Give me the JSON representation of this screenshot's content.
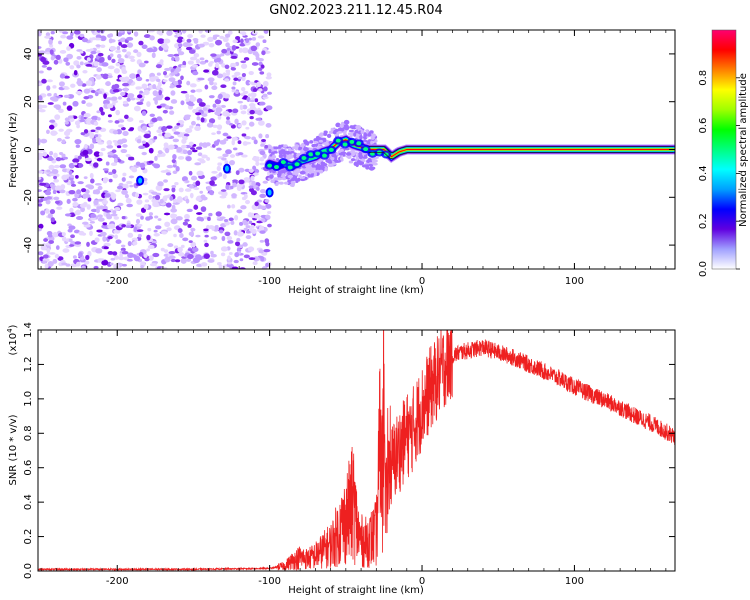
{
  "title": "GN02.2023.211.12.45.R04",
  "chart_data": [
    {
      "type": "heatmap",
      "xlabel": "Height of straight line (km)",
      "ylabel": "Frequency (Hz)",
      "xlim": [
        -252,
        166
      ],
      "ylim": [
        -50,
        50
      ],
      "xticks": [
        -200,
        -100,
        0,
        100
      ],
      "yticks": [
        -40,
        -20,
        0,
        20,
        40
      ],
      "ridge": [
        [
          -100,
          -6
        ],
        [
          -95,
          -7
        ],
        [
          -90,
          -6
        ],
        [
          -85,
          -7
        ],
        [
          -80,
          -5
        ],
        [
          -75,
          -4
        ],
        [
          -70,
          -3
        ],
        [
          -65,
          -1
        ],
        [
          -60,
          0
        ],
        [
          -55,
          3
        ],
        [
          -50,
          4
        ],
        [
          -45,
          2
        ],
        [
          -40,
          1
        ],
        [
          -35,
          0
        ],
        [
          -30,
          0
        ],
        [
          -25,
          0
        ],
        [
          -20,
          -3
        ],
        [
          -15,
          -1
        ],
        [
          -10,
          0
        ],
        [
          0,
          0
        ],
        [
          50,
          0
        ],
        [
          100,
          0
        ],
        [
          166,
          0
        ]
      ],
      "noise_region": [
        -252,
        -100
      ],
      "grid": false,
      "colorbar": {
        "label": "Normalized spectral amplitude",
        "range": [
          0,
          1
        ],
        "ticks": [
          "0.0",
          "0.2",
          "0.4",
          "0.6",
          "0.8"
        ],
        "colors": [
          "#ffffff",
          "#a0a0ff",
          "#6000e0",
          "#0000ff",
          "#00a0ff",
          "#00ffff",
          "#00ff80",
          "#00ff00",
          "#a0ff00",
          "#ffff00",
          "#ff8000",
          "#ff0000",
          "#ff0070"
        ]
      }
    },
    {
      "type": "line",
      "xlabel": "Height of straight line (km)",
      "ylabel": "SNR (10 * v/v)",
      "multiplier": "(x10",
      "multiplier_exp": "4",
      "multiplier_close": ")",
      "xlim": [
        -252,
        166
      ],
      "ylim": [
        0,
        1.4
      ],
      "xticks": [
        -200,
        -100,
        0,
        100
      ],
      "yticks": [
        "0.0",
        "0.2",
        "0.4",
        "0.6",
        "0.8",
        "1.0",
        "1.2",
        "1.4"
      ],
      "grid": false,
      "line_color": "#ee2020",
      "series": [
        {
          "x": [
            -252,
            -200,
            -150,
            -100,
            -90,
            -85,
            -80,
            -75,
            -70,
            -65,
            -60,
            -55,
            -50,
            -45,
            -42,
            -40,
            -38,
            -35,
            -32,
            -30,
            -28,
            -26,
            -25,
            -24,
            -22,
            -20,
            -18,
            -15,
            -12,
            -10,
            -8,
            -5,
            0,
            5,
            10,
            15,
            20,
            25,
            30,
            35,
            40,
            50,
            60,
            70,
            80,
            90,
            100,
            110,
            120,
            130,
            140,
            150,
            160,
            166
          ],
          "y": [
            0.01,
            0.01,
            0.01,
            0.015,
            0.03,
            0.06,
            0.08,
            0.07,
            0.09,
            0.12,
            0.15,
            0.22,
            0.3,
            0.4,
            0.22,
            0.18,
            0.16,
            0.18,
            0.2,
            0.22,
            0.6,
            0.9,
            1.1,
            0.35,
            0.55,
            0.6,
            0.65,
            0.7,
            0.75,
            0.8,
            0.78,
            0.85,
            0.95,
            1.05,
            1.12,
            1.2,
            1.25,
            1.27,
            1.28,
            1.29,
            1.3,
            1.27,
            1.24,
            1.2,
            1.16,
            1.12,
            1.07,
            1.03,
            0.99,
            0.95,
            0.9,
            0.86,
            0.81,
            0.78
          ]
        }
      ]
    }
  ]
}
